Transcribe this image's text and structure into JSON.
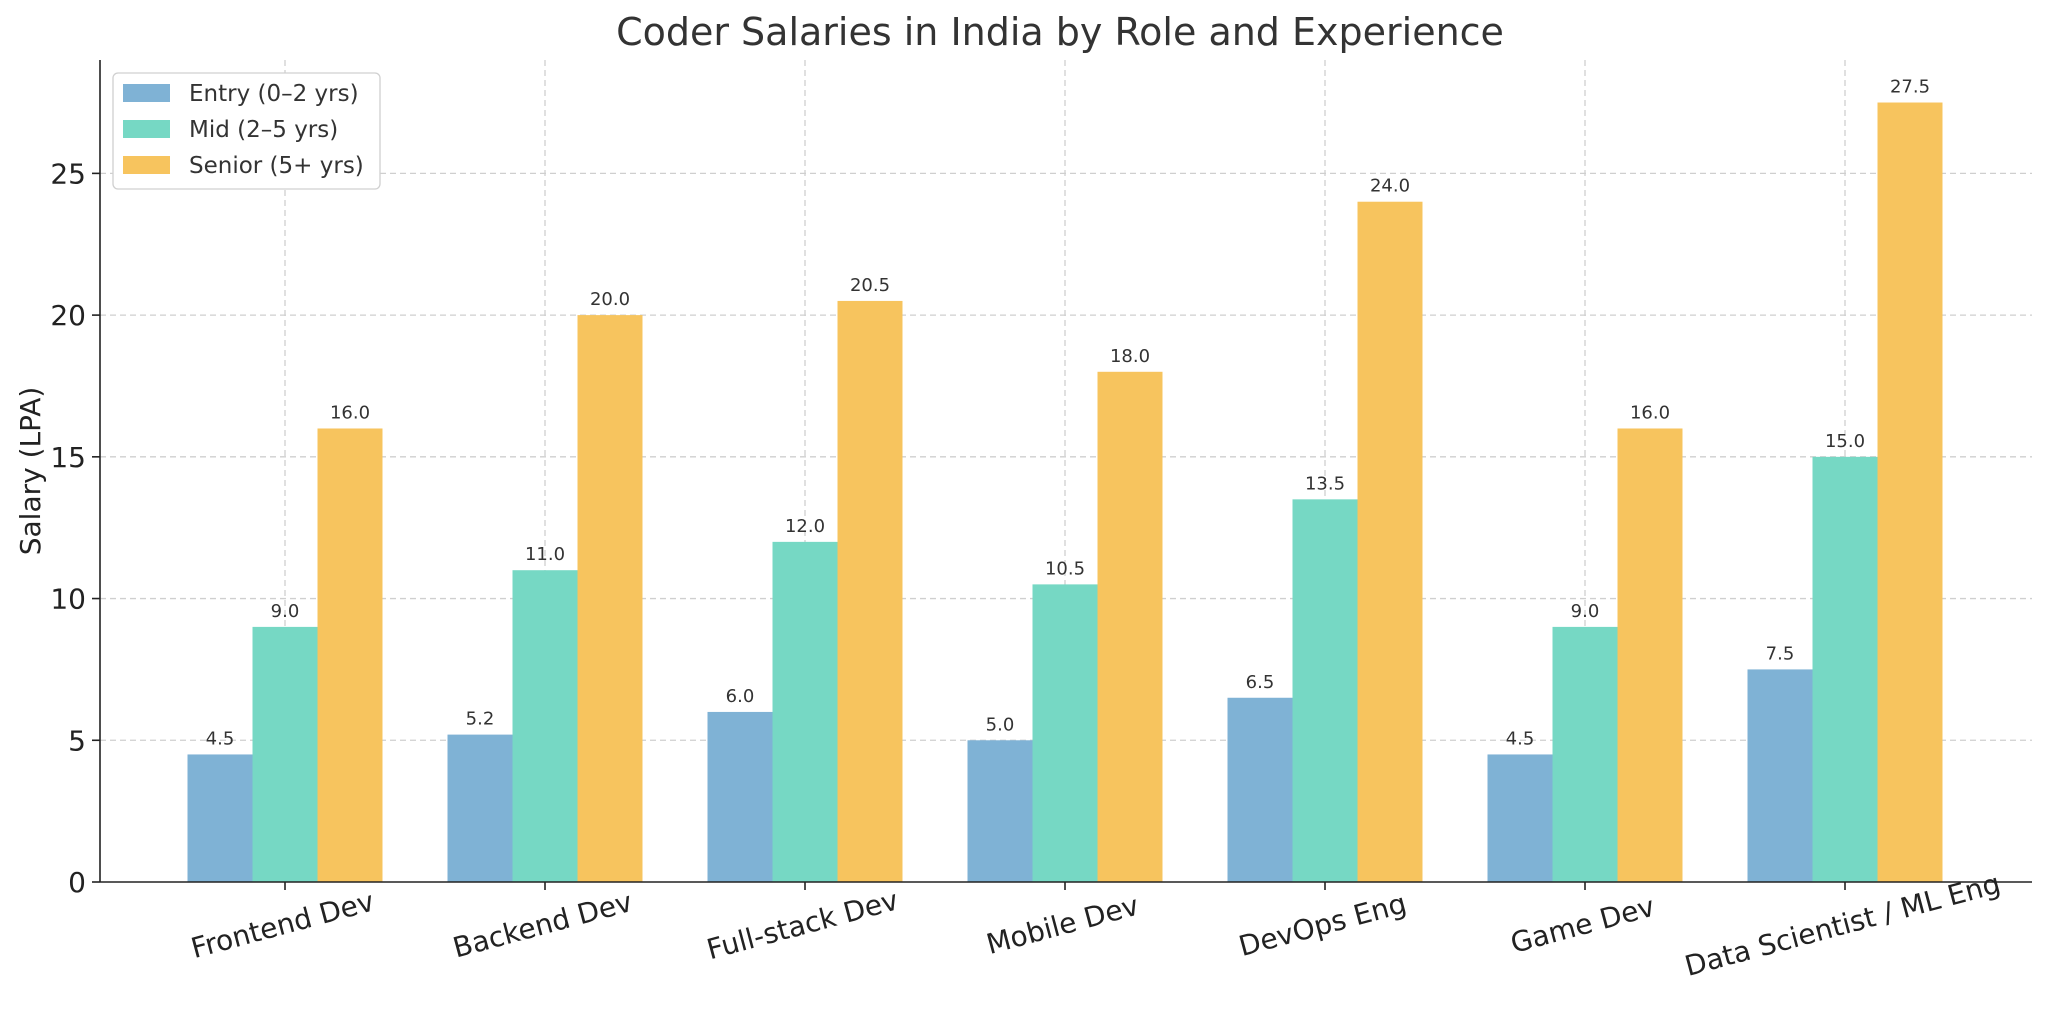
{
  "chart_data": {
    "type": "bar",
    "title": "Coder Salaries in India by Role and Experience",
    "xlabel": "",
    "ylabel": "Salary (LPA)",
    "ylim": [
      0,
      29
    ],
    "yticks": [
      0,
      5,
      10,
      15,
      20,
      25
    ],
    "grid": true,
    "legend_position": "top-left",
    "categories": [
      "Frontend Dev",
      "Backend Dev",
      "Full-stack Dev",
      "Mobile Dev",
      "DevOps Eng",
      "Game Dev",
      "Data Scientist / ML Eng"
    ],
    "series": [
      {
        "name": "Entry (0–2 yrs)",
        "color": "#7fb2d5",
        "values": [
          4.5,
          5.2,
          6.0,
          5.0,
          6.5,
          4.5,
          7.5
        ],
        "labels": [
          "4.5",
          "5.2",
          "6.0",
          "5.0",
          "6.5",
          "4.5",
          "7.5"
        ]
      },
      {
        "name": "Mid (2–5 yrs)",
        "color": "#76d8c4",
        "values": [
          9.0,
          11.0,
          12.0,
          10.5,
          13.5,
          9.0,
          15.0
        ],
        "labels": [
          "9.0",
          "11.0",
          "12.0",
          "10.5",
          "13.5",
          "9.0",
          "15.0"
        ]
      },
      {
        "name": "Senior (5+ yrs)",
        "color": "#f7c45e",
        "values": [
          16.0,
          20.0,
          20.5,
          18.0,
          24.0,
          16.0,
          27.5
        ],
        "labels": [
          "16.0",
          "20.0",
          "20.5",
          "18.0",
          "24.0",
          "16.0",
          "27.5"
        ]
      }
    ]
  }
}
